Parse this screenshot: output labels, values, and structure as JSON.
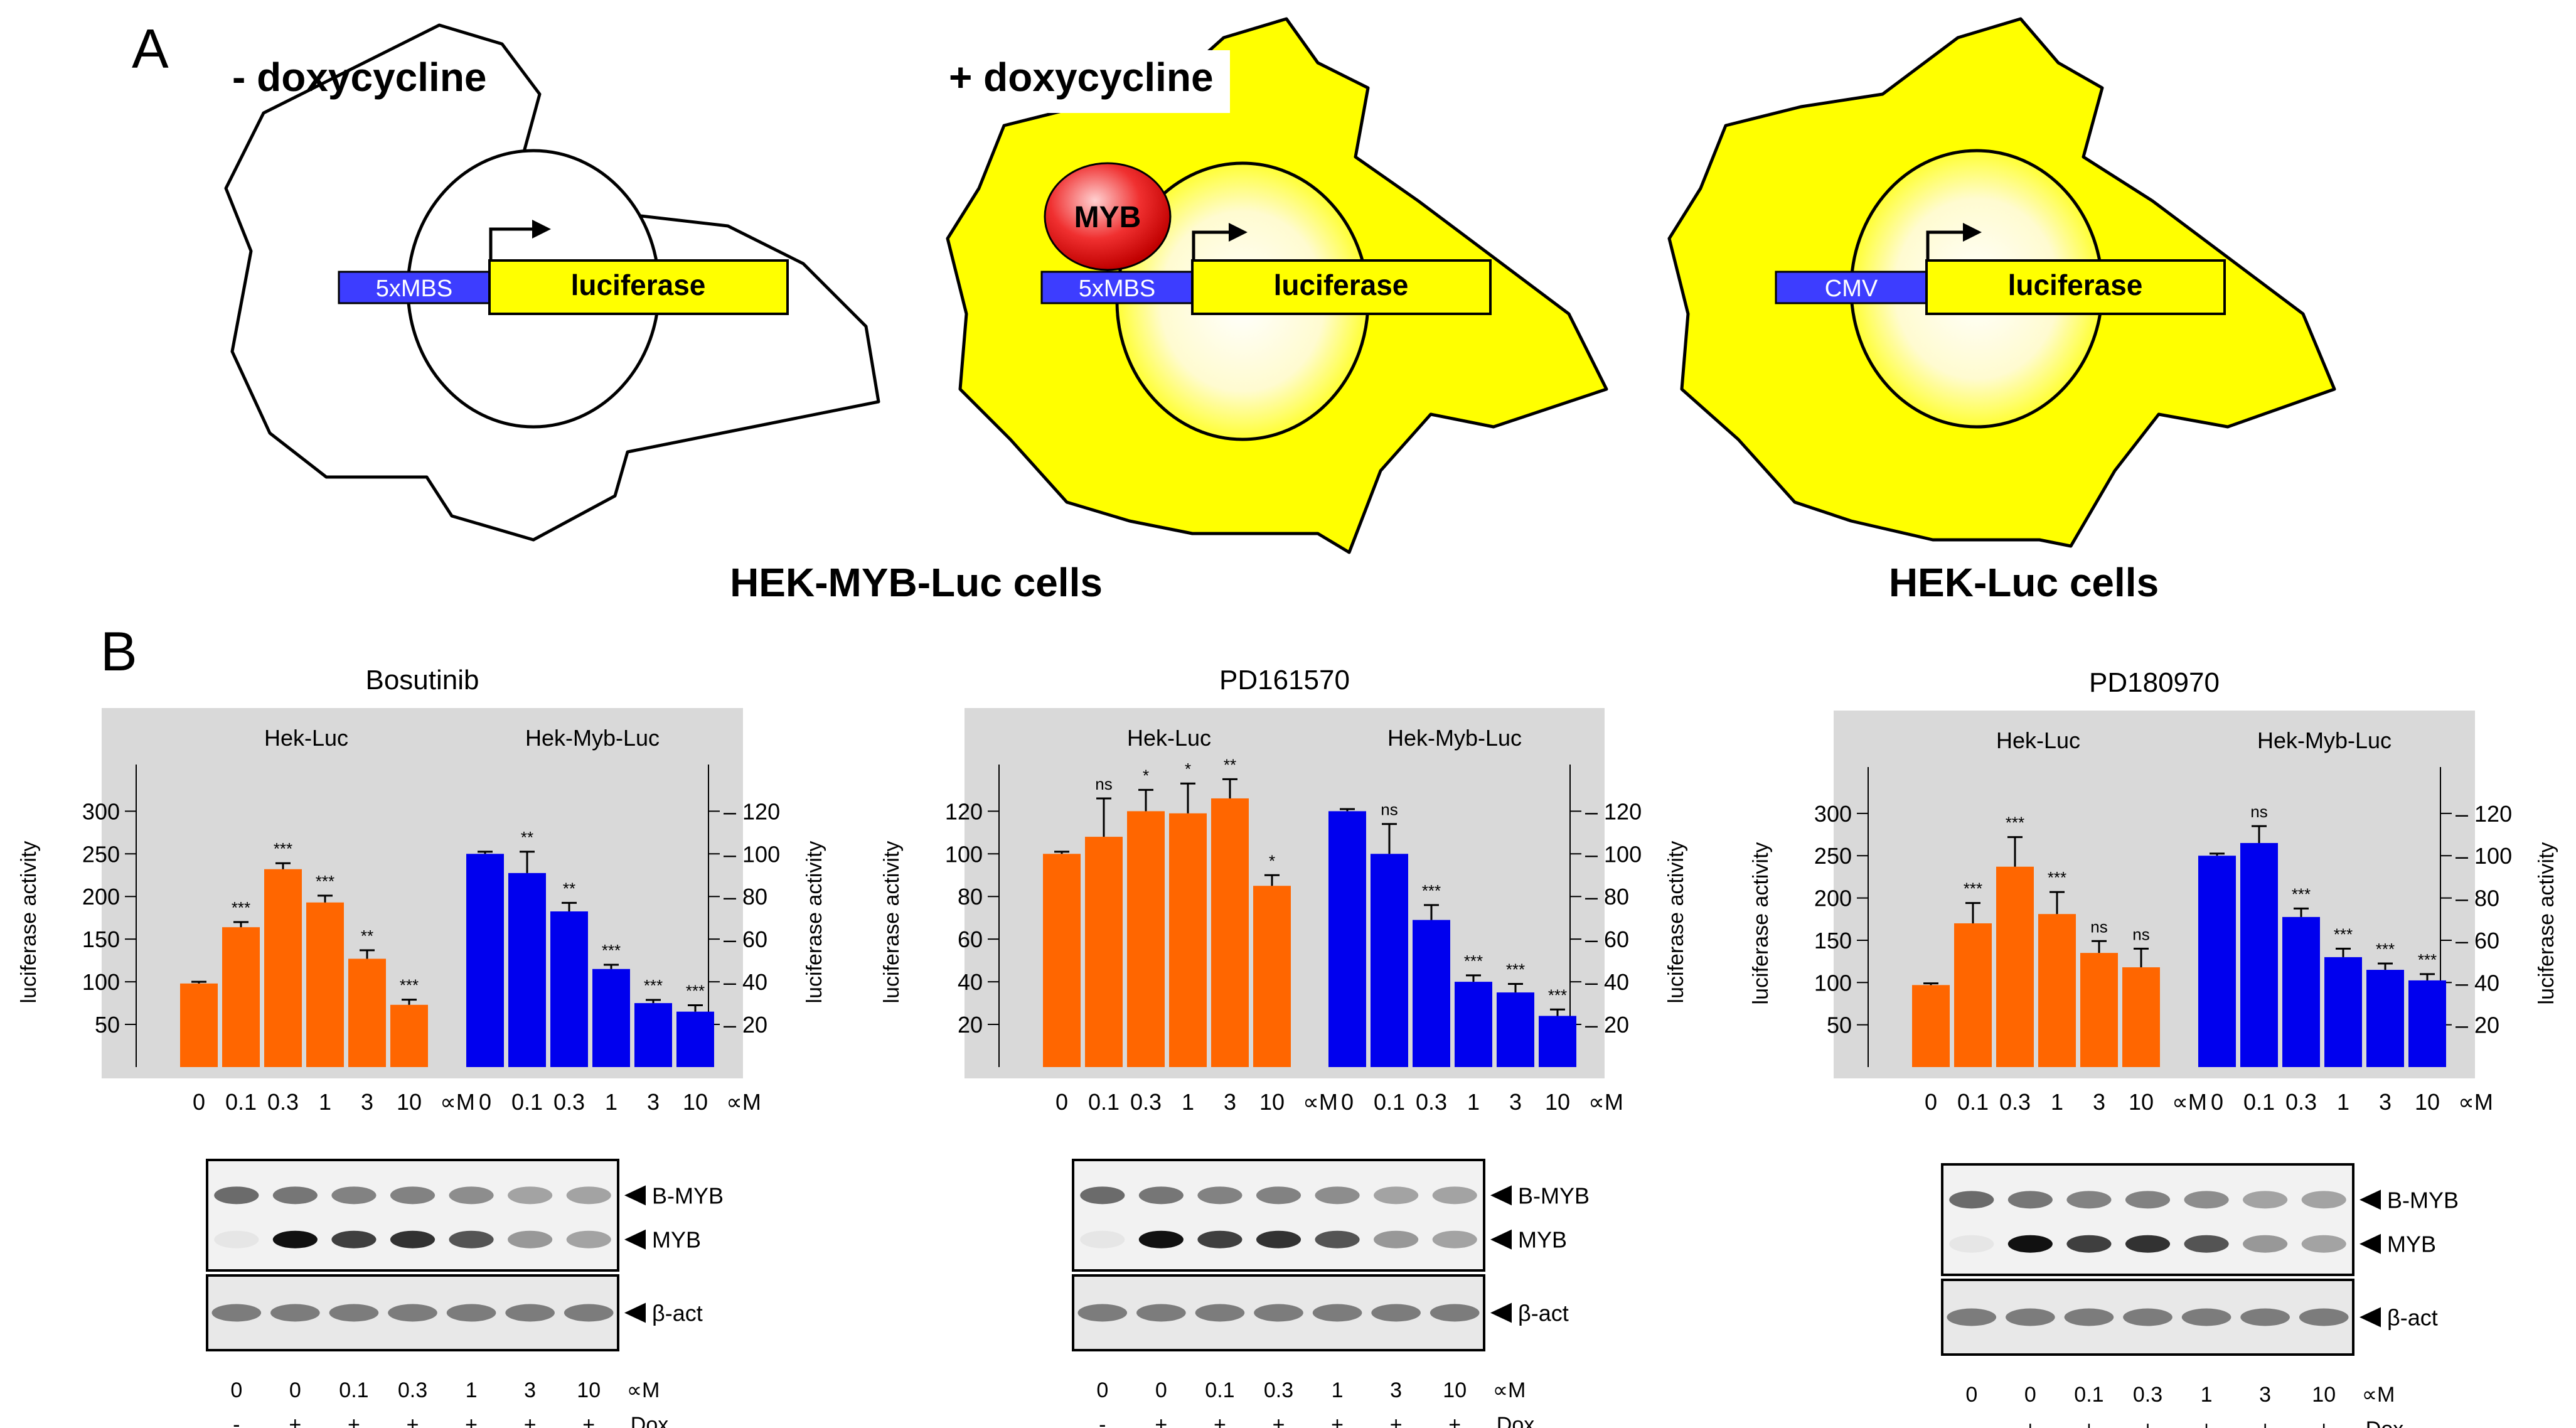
{
  "panel_a": {
    "label": "A",
    "cells": [
      {
        "condition": "- doxycycline",
        "promoter": "5xMBS",
        "gene": "luciferase",
        "factor": "",
        "filled": false
      },
      {
        "condition": "+ doxycycline",
        "promoter": "5xMBS",
        "gene": "luciferase",
        "factor": "MYB",
        "filled": true
      },
      {
        "condition": "",
        "promoter": "CMV",
        "gene": "luciferase",
        "factor": "",
        "filled": true
      }
    ],
    "captions": [
      "HEK-MYB-Luc cells",
      "HEK-Luc cells"
    ]
  },
  "panel_b": {
    "label": "B"
  },
  "colors": {
    "orange": "#ff6600",
    "blue": "#0000ee",
    "yellow": "#ffff00",
    "grey": "#d9d9d9",
    "red": "#ee1111"
  },
  "chart_data": [
    {
      "type": "bar",
      "title": "Bosutinib",
      "ylabel_left": "luciferase activity",
      "ylabel_right": "luciferase activity",
      "left_ticks": [
        50,
        100,
        150,
        200,
        250,
        300
      ],
      "left_ylim": [
        0,
        340
      ],
      "right_ticks": [
        20,
        40,
        60,
        80,
        100,
        120
      ],
      "right_ylim": [
        0,
        136
      ],
      "unit": "∝M",
      "groups": [
        {
          "name": "Hek-Luc",
          "axis": "left",
          "color": "orange",
          "categories": [
            "0",
            "0.1",
            "0.3",
            "1",
            "3",
            "10"
          ],
          "values": [
            98,
            164,
            232,
            193,
            127,
            73
          ],
          "errors": [
            2,
            6,
            7,
            8,
            10,
            6
          ],
          "sig": [
            "",
            "***",
            "***",
            "***",
            "**",
            "***"
          ]
        },
        {
          "name": "Hek-Myb-Luc",
          "axis": "right",
          "color": "blue",
          "categories": [
            "0",
            "0.1",
            "0.3",
            "1",
            "3",
            "10"
          ],
          "values": [
            100,
            91,
            73,
            46,
            30,
            26
          ],
          "errors": [
            1,
            10,
            4,
            2,
            1.5,
            3
          ],
          "sig": [
            "",
            "**",
            "**",
            "***",
            "***",
            "***"
          ]
        }
      ],
      "western": {
        "doses": [
          "0",
          "0",
          "0.1",
          "0.3",
          "1",
          "3",
          "10"
        ],
        "dose_unit": "∝M",
        "dox": [
          "-",
          "+",
          "+",
          "+",
          "+",
          "+",
          "+"
        ],
        "dox_label": "Dox",
        "bands": [
          "B-MYB",
          "MYB",
          "β-act"
        ]
      }
    },
    {
      "type": "bar",
      "title": "PD161570",
      "ylabel_left": "luciferase activity",
      "ylabel_right": "luciferase activity",
      "left_ticks": [
        20,
        40,
        60,
        80,
        100,
        120
      ],
      "left_ylim": [
        0,
        136
      ],
      "right_ticks": [
        20,
        40,
        60,
        80,
        100,
        120
      ],
      "right_ylim": [
        0,
        136
      ],
      "unit": "∝M",
      "groups": [
        {
          "name": "Hek-Luc",
          "axis": "left",
          "color": "orange",
          "categories": [
            "0",
            "0.1",
            "0.3",
            "1",
            "3",
            "10"
          ],
          "values": [
            100,
            108,
            120,
            119,
            126,
            85
          ],
          "errors": [
            1,
            18,
            10,
            14,
            9,
            5
          ],
          "sig": [
            "",
            "ns",
            "*",
            "*",
            "**",
            "*"
          ]
        },
        {
          "name": "Hek-Myb-Luc",
          "axis": "right",
          "color": "blue",
          "categories": [
            "0",
            "0.1",
            "0.3",
            "1",
            "3",
            "10"
          ],
          "values": [
            120,
            100,
            69,
            40,
            35,
            24
          ],
          "errors": [
            1,
            14,
            7,
            3,
            4,
            3
          ],
          "sig": [
            "",
            "ns",
            "***",
            "***",
            "***",
            "***"
          ]
        }
      ],
      "western": {
        "doses": [
          "0",
          "0",
          "0.1",
          "0.3",
          "1",
          "3",
          "10"
        ],
        "dose_unit": "∝M",
        "dox": [
          "-",
          "+",
          "+",
          "+",
          "+",
          "+",
          "+"
        ],
        "dox_label": "Dox",
        "bands": [
          "B-MYB",
          "MYB",
          "β-act"
        ]
      }
    },
    {
      "type": "bar",
      "title": "PD180970",
      "ylabel_left": "luciferase activity",
      "ylabel_right": "luciferase activity",
      "left_ticks": [
        50,
        100,
        150,
        200,
        250,
        300
      ],
      "left_ylim": [
        0,
        340
      ],
      "right_ticks": [
        20,
        40,
        60,
        80,
        100,
        120
      ],
      "right_ylim": [
        0,
        136
      ],
      "unit": "∝M",
      "groups": [
        {
          "name": "Hek-Luc",
          "axis": "left",
          "color": "orange",
          "categories": [
            "0",
            "0.1",
            "0.3",
            "1",
            "3",
            "10"
          ],
          "values": [
            97,
            170,
            237,
            181,
            135,
            118
          ],
          "errors": [
            2,
            24,
            35,
            26,
            14,
            22
          ],
          "sig": [
            "",
            "***",
            "***",
            "***",
            "ns",
            "ns"
          ]
        },
        {
          "name": "Hek-Myb-Luc",
          "axis": "right",
          "color": "blue",
          "categories": [
            "0",
            "0.1",
            "0.3",
            "1",
            "3",
            "10"
          ],
          "values": [
            100,
            106,
            71,
            52,
            46,
            41
          ],
          "errors": [
            1,
            8,
            4,
            4,
            3,
            3
          ],
          "sig": [
            "",
            "ns",
            "***",
            "***",
            "***",
            "***"
          ]
        }
      ],
      "western": {
        "doses": [
          "0",
          "0",
          "0.1",
          "0.3",
          "1",
          "3",
          "10"
        ],
        "dose_unit": "∝M",
        "dox": [
          "-",
          "+",
          "+",
          "+",
          "+",
          "+",
          "+"
        ],
        "dox_label": "Dox",
        "bands": [
          "B-MYB",
          "MYB",
          "β-act"
        ]
      }
    }
  ]
}
